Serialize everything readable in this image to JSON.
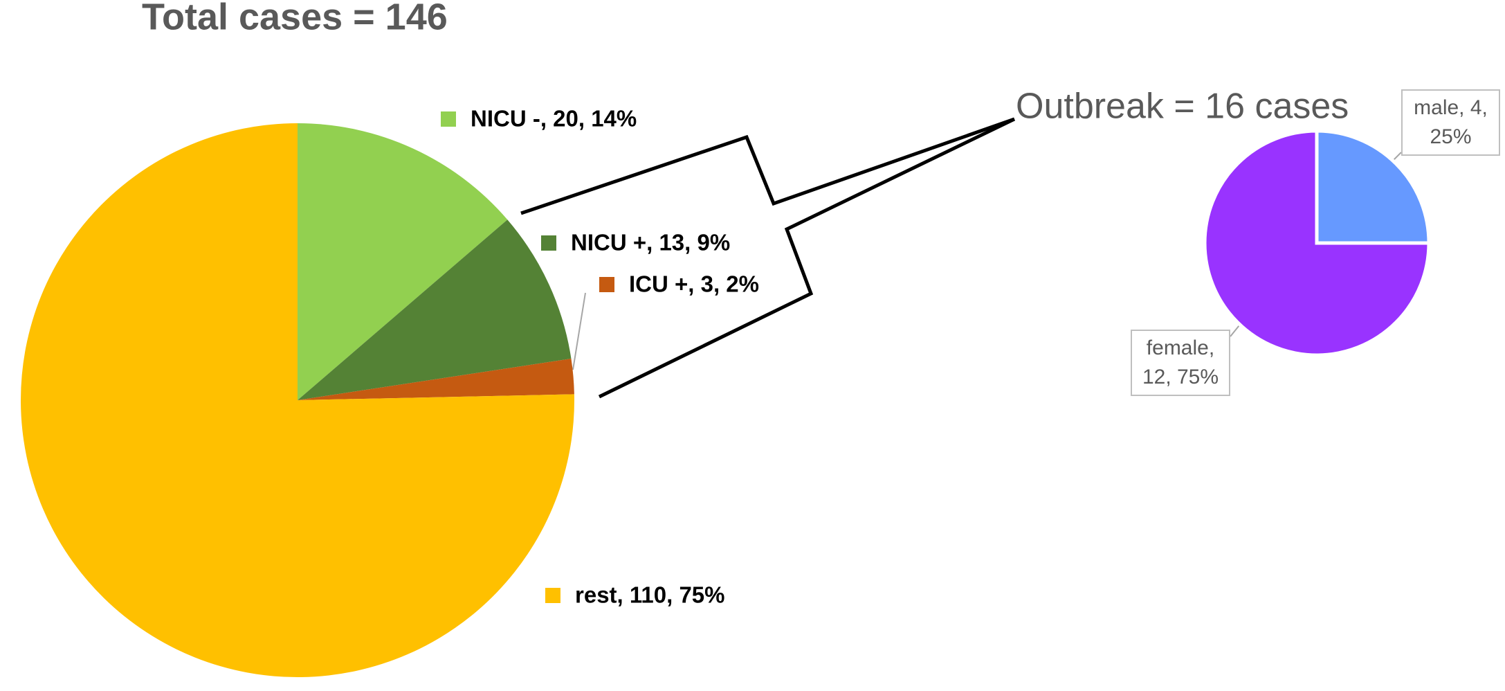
{
  "chart_data": [
    {
      "type": "pie",
      "title": "Total cases = 146",
      "values": [
        20,
        13,
        3,
        110
      ],
      "value_labels": [
        "NICU -, 20, 14%",
        "NICU +, 13, 9%",
        "ICU +, 3, 2%",
        "rest, 110, 75%"
      ],
      "colors": [
        "#92d050",
        "#548235",
        "#c55a11",
        "#ffc000"
      ]
    },
    {
      "type": "pie",
      "title": "Outbreak = 16 cases",
      "values": [
        4,
        12
      ],
      "value_labels": [
        "male, 4, 25%",
        "female, 12, 75%"
      ],
      "colors": [
        "#6699ff",
        "#9933ff"
      ]
    }
  ]
}
